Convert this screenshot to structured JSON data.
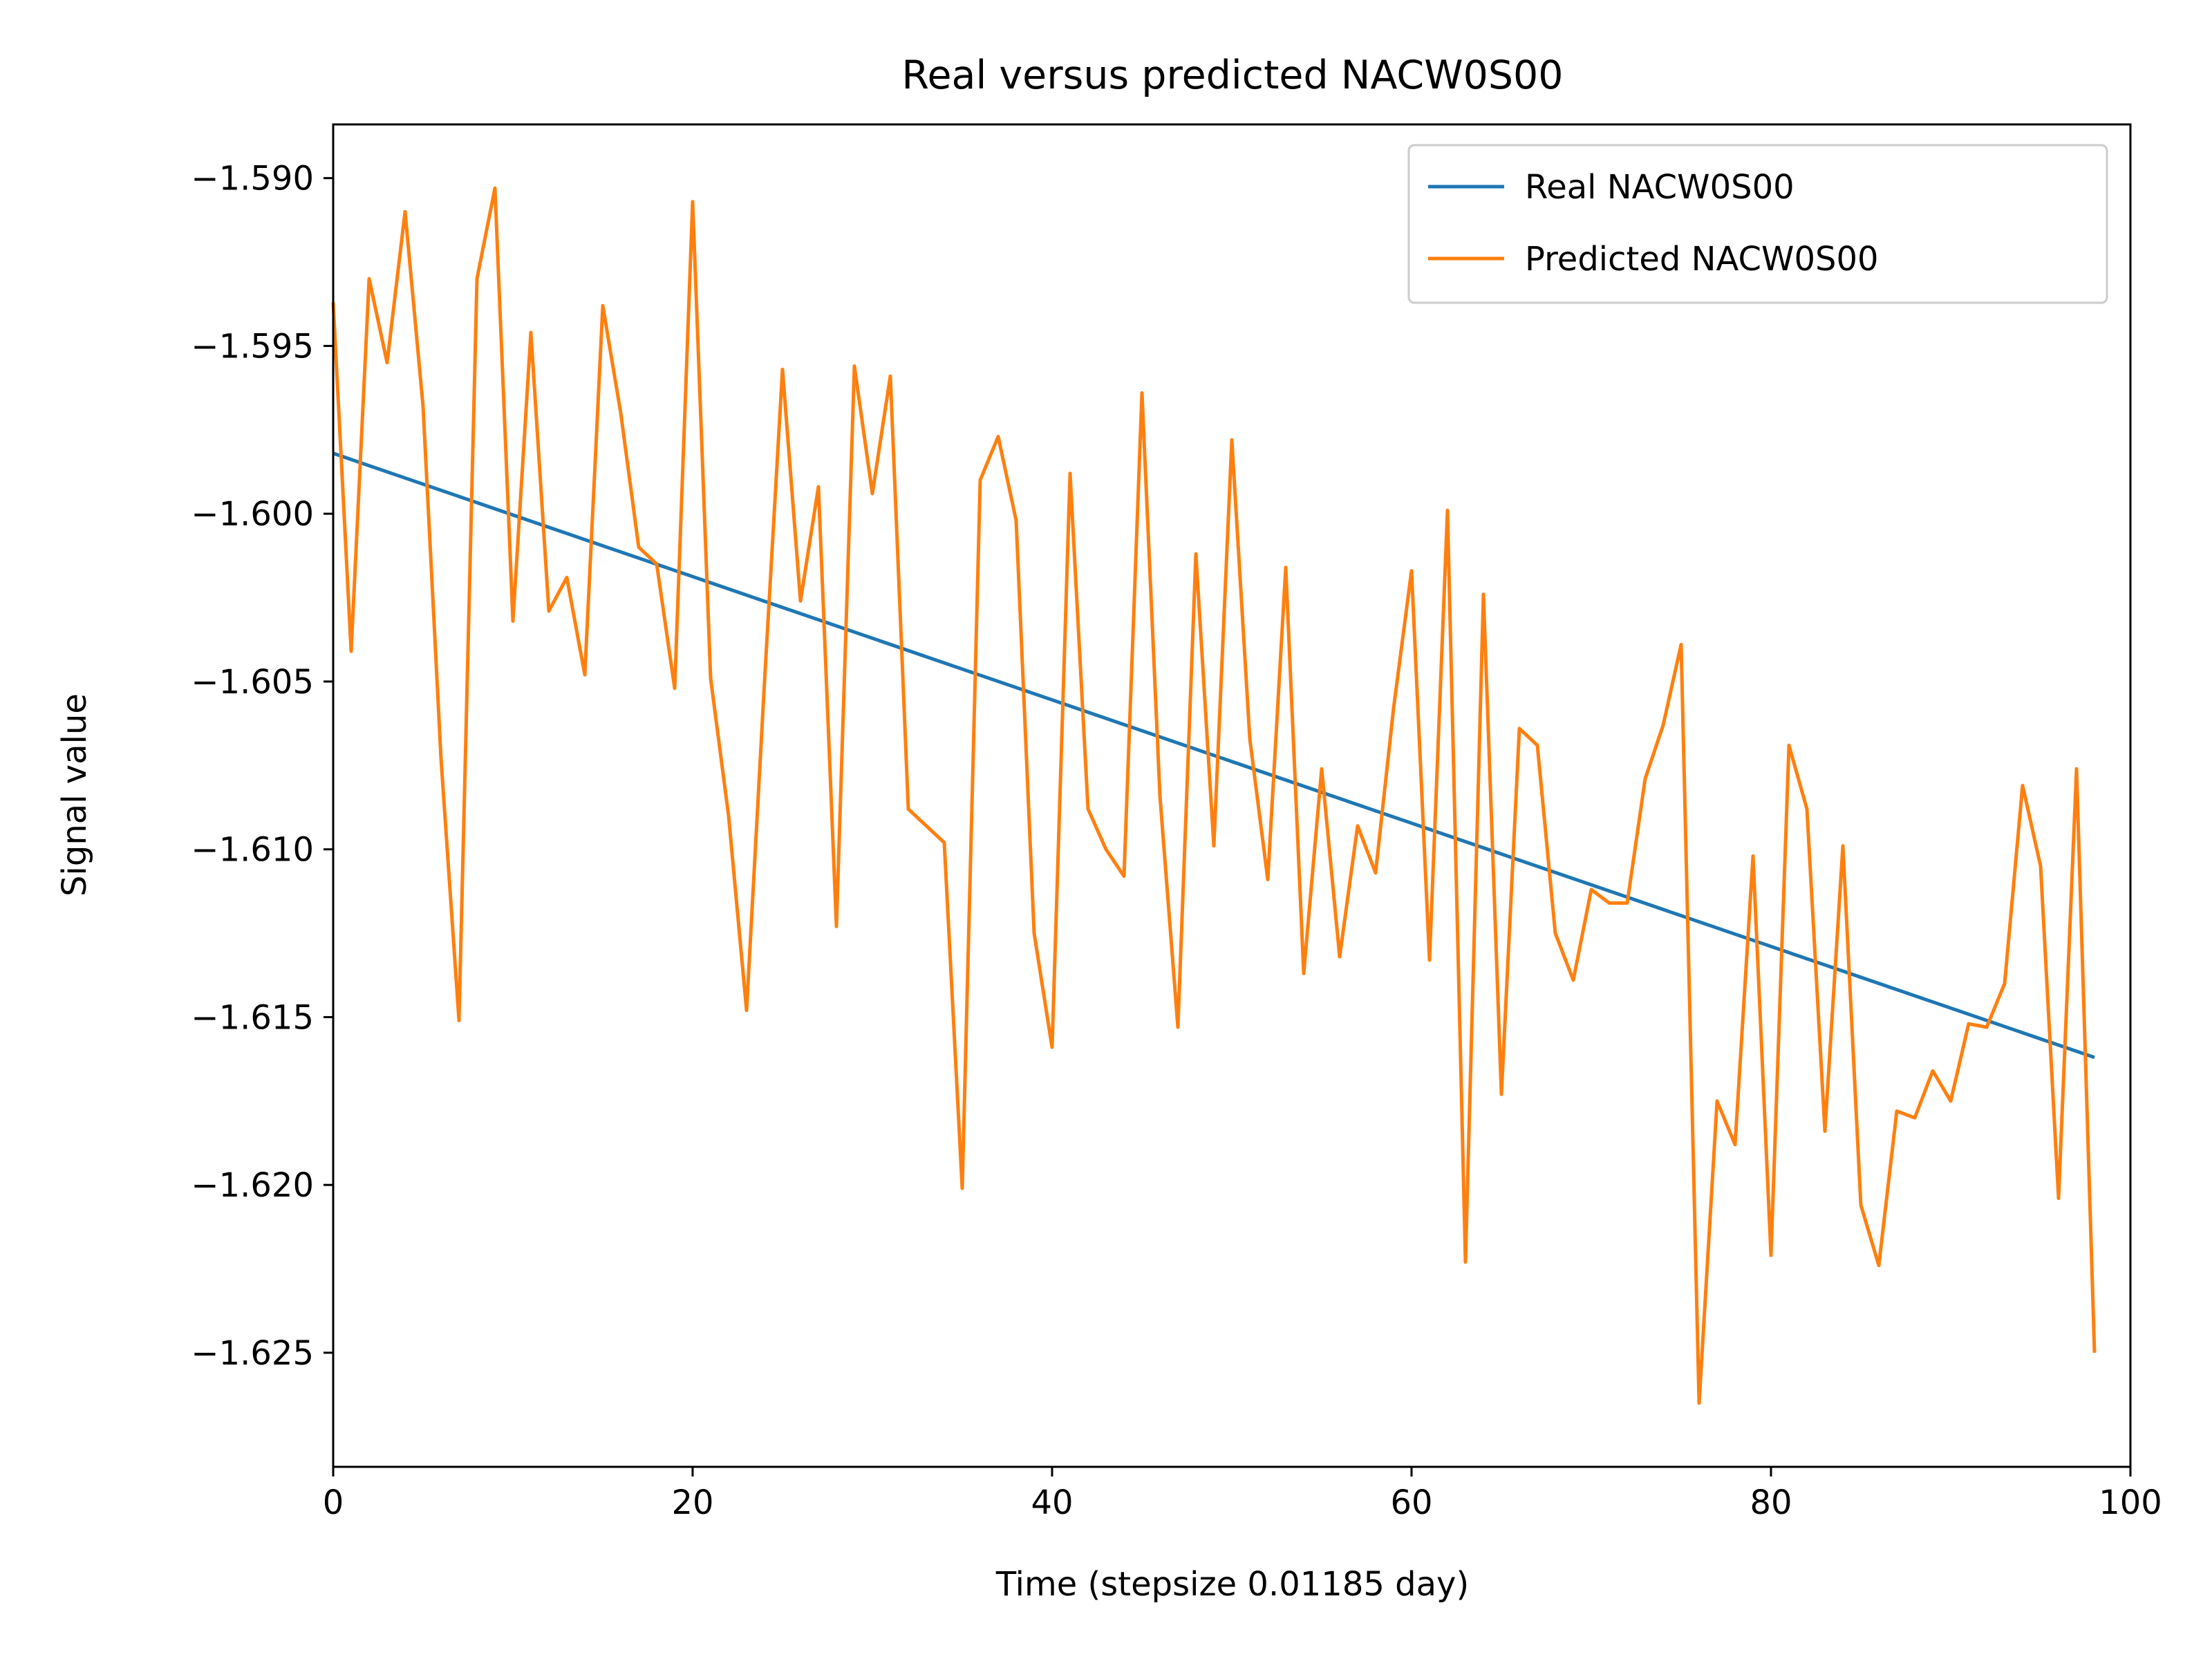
{
  "chart_data": {
    "type": "line",
    "title": "Real versus predicted NACW0S00",
    "xlabel": "Time (stepsize 0.01185 day)",
    "ylabel": "Signal value",
    "xlim": [
      0,
      100
    ],
    "ylim": [
      -1.6284,
      -1.5884
    ],
    "xticks": [
      0,
      20,
      40,
      60,
      80,
      100
    ],
    "yticks": [
      -1.59,
      -1.595,
      -1.6,
      -1.605,
      -1.61,
      -1.615,
      -1.62,
      -1.625
    ],
    "xtick_labels": [
      "0",
      "20",
      "40",
      "60",
      "80",
      "100"
    ],
    "ytick_labels": [
      "−1.590",
      "−1.595",
      "−1.600",
      "−1.605",
      "−1.610",
      "−1.615",
      "−1.620",
      "−1.625"
    ],
    "grid": false,
    "legend_position": "top-right",
    "series": [
      {
        "name": "Real NACW0S00",
        "color": "#1f77b4",
        "x": [
          0,
          98
        ],
        "y": [
          -1.5982,
          -1.6162
        ]
      },
      {
        "name": "Predicted NACW0S00",
        "color": "#ff7f0e",
        "x": [
          0,
          1,
          2,
          3,
          4,
          5,
          6,
          7,
          8,
          9,
          10,
          11,
          12,
          13,
          14,
          15,
          16,
          17,
          18,
          19,
          20,
          21,
          22,
          23,
          24,
          25,
          26,
          27,
          28,
          29,
          30,
          31,
          32,
          33,
          34,
          35,
          36,
          37,
          38,
          39,
          40,
          41,
          42,
          43,
          44,
          45,
          46,
          47,
          48,
          49,
          50,
          51,
          52,
          53,
          54,
          55,
          56,
          57,
          58,
          59,
          60,
          61,
          62,
          63,
          64,
          65,
          66,
          67,
          68,
          69,
          70,
          71,
          72,
          73,
          74,
          75,
          76,
          77,
          78,
          79,
          80,
          81,
          82,
          83,
          84,
          85,
          86,
          87,
          88,
          89,
          90,
          91,
          92,
          93,
          94,
          95,
          96,
          97,
          98
        ],
        "y": [
          -1.5937,
          -1.6041,
          -1.593,
          -1.5955,
          -1.591,
          -1.5968,
          -1.6073,
          -1.6151,
          -1.593,
          -1.5903,
          -1.6032,
          -1.5946,
          -1.6029,
          -1.6019,
          -1.6048,
          -1.5938,
          -1.597,
          -1.601,
          -1.6015,
          -1.6052,
          -1.5907,
          -1.6049,
          -1.609,
          -1.6148,
          -1.605,
          -1.5957,
          -1.6026,
          -1.5992,
          -1.6123,
          -1.5956,
          -1.5994,
          -1.5959,
          -1.6088,
          -1.6093,
          -1.6098,
          -1.6201,
          -1.599,
          -1.5977,
          -1.6002,
          -1.6125,
          -1.6159,
          -1.5988,
          -1.6088,
          -1.61,
          -1.6108,
          -1.5964,
          -1.6084,
          -1.6153,
          -1.6012,
          -1.6099,
          -1.5978,
          -1.6067,
          -1.6109,
          -1.6016,
          -1.6137,
          -1.6076,
          -1.6132,
          -1.6093,
          -1.6107,
          -1.6058,
          -1.6017,
          -1.6133,
          -1.5999,
          -1.6223,
          -1.6024,
          -1.6173,
          -1.6064,
          -1.6069,
          -1.6125,
          -1.6139,
          -1.6112,
          -1.6116,
          -1.6116,
          -1.6079,
          -1.6063,
          -1.6039,
          -1.6265,
          -1.6175,
          -1.6188,
          -1.6102,
          -1.6221,
          -1.6069,
          -1.6088,
          -1.6184,
          -1.6099,
          -1.6206,
          -1.6224,
          -1.6178,
          -1.618,
          -1.6166,
          -1.6175,
          -1.6152,
          -1.6153,
          -1.614,
          -1.6081,
          -1.6105,
          -1.6204,
          -1.6076,
          -1.625
        ]
      }
    ]
  }
}
